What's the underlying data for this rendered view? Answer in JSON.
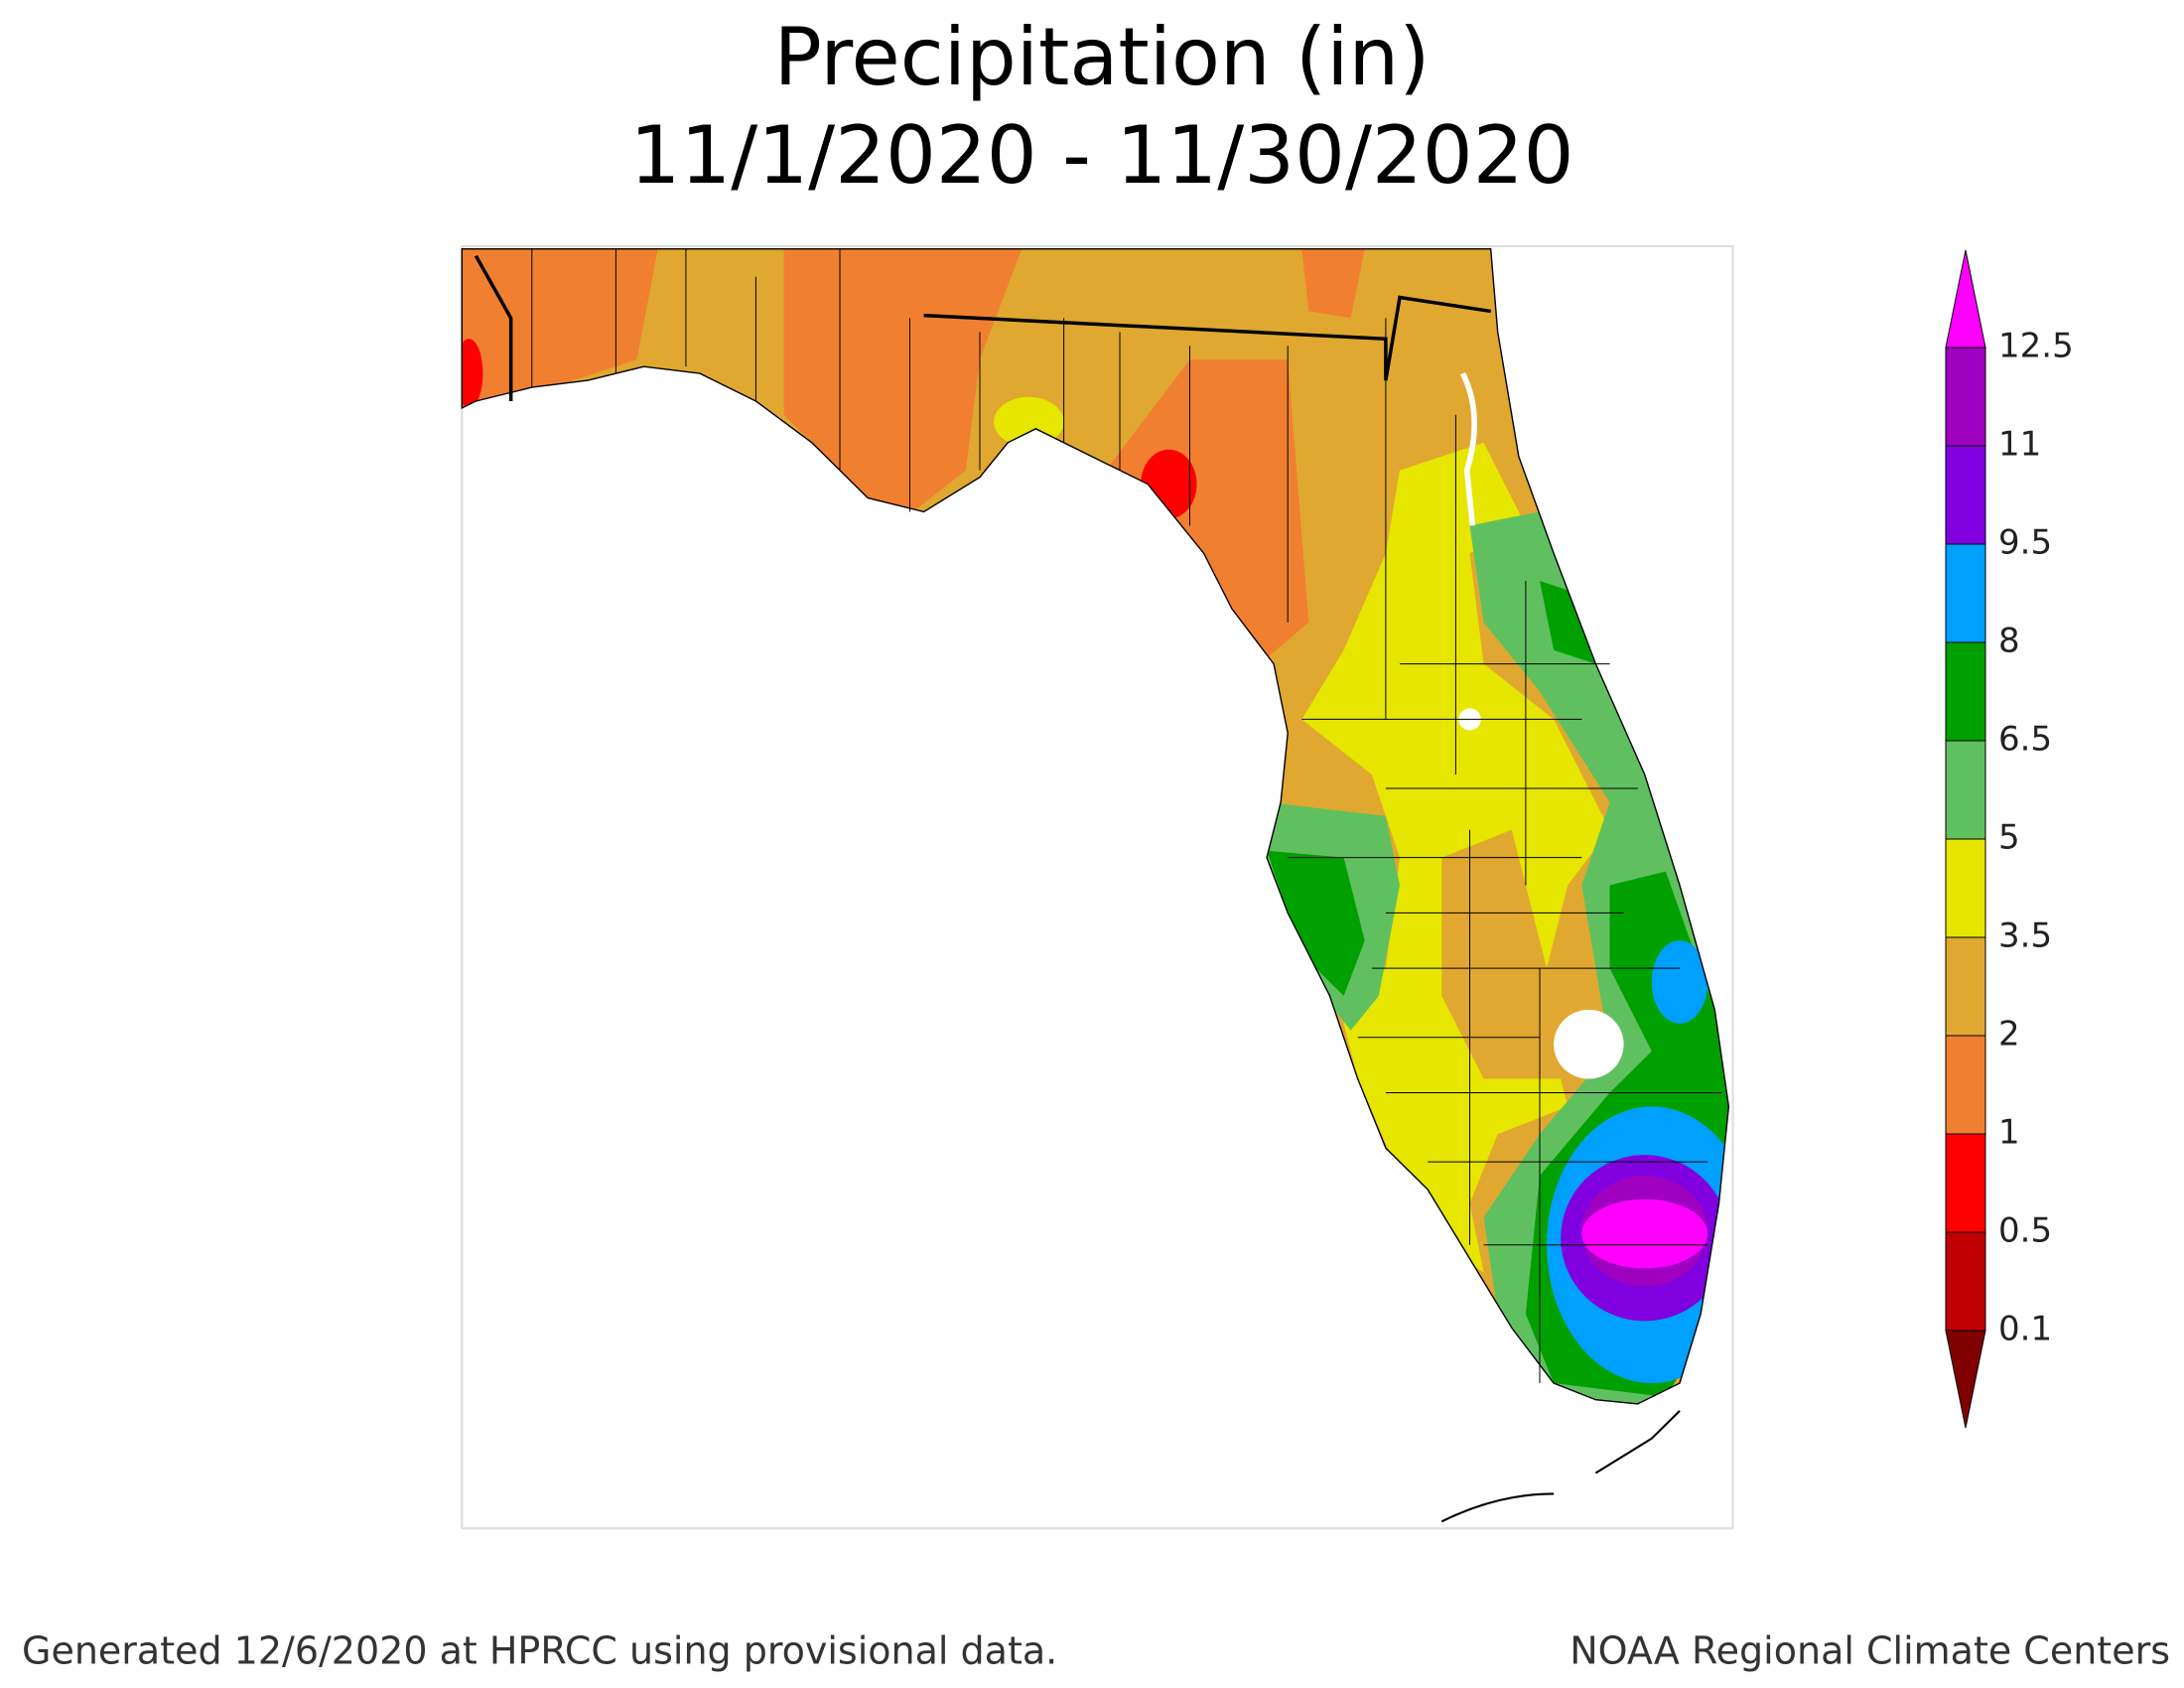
{
  "header": {
    "title": "Precipitation (in)",
    "date_range": "11/1/2020 - 11/30/2020"
  },
  "legend": {
    "ticks": [
      0.1,
      0.5,
      1,
      2,
      3.5,
      5,
      6.5,
      8,
      9.5,
      11,
      12.5
    ],
    "colors": [
      "#800000",
      "#c00000",
      "#ff0000",
      "#f08030",
      "#e0a830",
      "#e6e600",
      "#60c060",
      "#00a000",
      "#00a0ff",
      "#8000e0",
      "#a000c0",
      "#ff00ff"
    ]
  },
  "footer": {
    "left": "Generated 12/6/2020 at HPRCC using provisional data.",
    "right": "NOAA Regional Climate Centers"
  }
}
